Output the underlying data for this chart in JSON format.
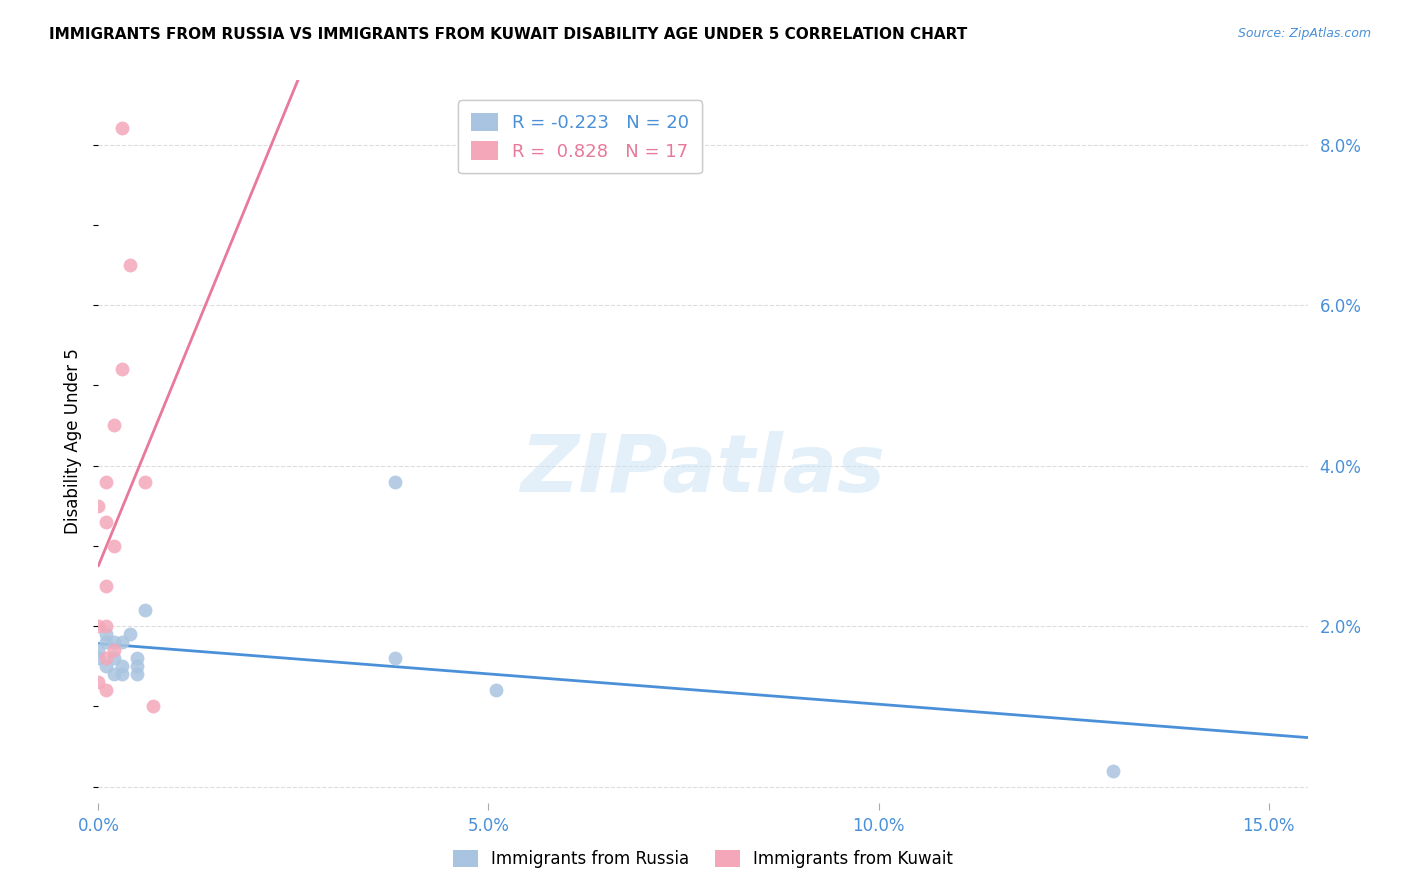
{
  "title": "IMMIGRANTS FROM RUSSIA VS IMMIGRANTS FROM KUWAIT DISABILITY AGE UNDER 5 CORRELATION CHART",
  "source": "Source: ZipAtlas.com",
  "ylabel": "Disability Age Under 5",
  "legend_russia": "Immigrants from Russia",
  "legend_kuwait": "Immigrants from Kuwait",
  "russia_R": -0.223,
  "russia_N": 20,
  "kuwait_R": 0.828,
  "kuwait_N": 17,
  "xlim": [
    0.0,
    0.155
  ],
  "ylim": [
    -0.002,
    0.088
  ],
  "russia_color": "#a8c4e0",
  "kuwait_color": "#f4a7b9",
  "russia_line_color": "#4a90d9",
  "kuwait_line_color": "#e8799a",
  "watermark_text": "ZIPatlas",
  "russia_x": [
    0.0,
    0.0,
    0.001,
    0.001,
    0.001,
    0.002,
    0.002,
    0.002,
    0.003,
    0.003,
    0.003,
    0.004,
    0.005,
    0.005,
    0.005,
    0.006,
    0.038,
    0.038,
    0.051,
    0.13
  ],
  "russia_y": [
    0.017,
    0.016,
    0.019,
    0.018,
    0.015,
    0.018,
    0.016,
    0.014,
    0.018,
    0.015,
    0.014,
    0.019,
    0.016,
    0.015,
    0.014,
    0.022,
    0.038,
    0.016,
    0.012,
    0.002
  ],
  "kuwait_x": [
    0.0,
    0.0,
    0.0,
    0.001,
    0.001,
    0.001,
    0.001,
    0.001,
    0.002,
    0.002,
    0.002,
    0.003,
    0.003,
    0.004,
    0.006,
    0.007,
    0.001
  ],
  "kuwait_y": [
    0.035,
    0.02,
    0.013,
    0.038,
    0.033,
    0.025,
    0.016,
    0.012,
    0.045,
    0.03,
    0.017,
    0.082,
    0.052,
    0.065,
    0.038,
    0.01,
    0.02
  ],
  "grid_color": "#dddddd",
  "grid_yticks": [
    0.0,
    0.02,
    0.04,
    0.06,
    0.08
  ],
  "xtick_positions": [
    0.0,
    0.05,
    0.1,
    0.15
  ],
  "xtick_labels": [
    "0.0%",
    "5.0%",
    "10.0%",
    "15.0%"
  ],
  "ytick_right_positions": [
    0.0,
    0.02,
    0.04,
    0.06,
    0.08
  ],
  "ytick_right_labels": [
    "",
    "2.0%",
    "4.0%",
    "6.0%",
    "8.0%"
  ],
  "tick_color": "#4a90d9",
  "marker_size": 100
}
